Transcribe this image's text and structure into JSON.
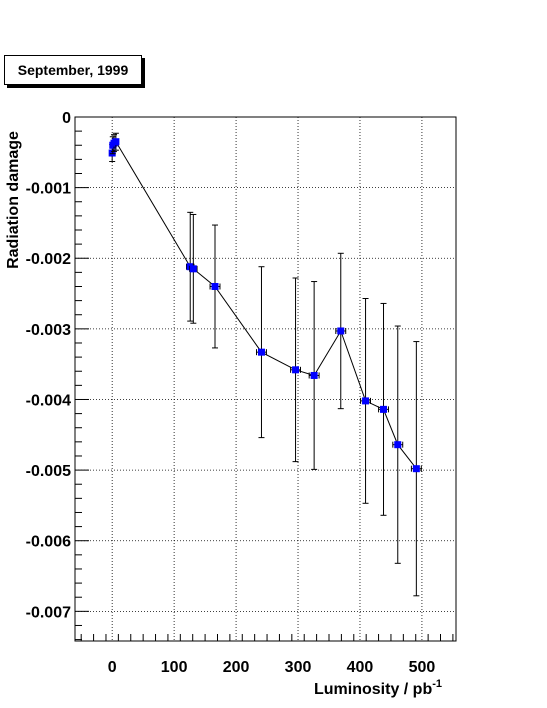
{
  "chart_data": {
    "type": "scatter",
    "title": "September, 1999",
    "xlabel": "Luminosity / pb",
    "xlabel_sup": "-1",
    "ylabel": "Radiation damage",
    "xlim": [
      -60,
      555
    ],
    "ylim": [
      -0.00742,
      0
    ],
    "x_ticks": [
      0,
      100,
      200,
      300,
      400,
      500
    ],
    "x_tick_labels": [
      "0",
      "100",
      "200",
      "300",
      "400",
      "500"
    ],
    "y_ticks": [
      0,
      -0.001,
      -0.002,
      -0.003,
      -0.004,
      -0.005,
      -0.006,
      -0.007
    ],
    "y_tick_labels": [
      "0",
      "-0.001",
      "-0.002",
      "-0.003",
      "-0.004",
      "-0.005",
      "-0.006",
      "-0.007"
    ],
    "grid": true,
    "marker_color": "#0000ff",
    "series": [
      {
        "points": [
          {
            "x": 0,
            "y": -0.00051,
            "xerr": 4,
            "yerr": 0.00012
          },
          {
            "x": 1,
            "y": -0.0004,
            "xerr": 4,
            "yerr": 0.00012
          },
          {
            "x": 3,
            "y": -0.00037,
            "xerr": 4,
            "yerr": 0.00012
          },
          {
            "x": 6,
            "y": -0.00035,
            "xerr": 4,
            "yerr": 0.00012
          },
          {
            "x": 126,
            "y": -0.00212,
            "xerr": 6,
            "yerr": 0.00077
          },
          {
            "x": 131,
            "y": -0.00215,
            "xerr": 6,
            "yerr": 0.00077
          },
          {
            "x": 166,
            "y": -0.0024,
            "xerr": 8,
            "yerr": 0.00087
          },
          {
            "x": 241,
            "y": -0.00333,
            "xerr": 8,
            "yerr": 0.00121
          },
          {
            "x": 296,
            "y": -0.00358,
            "xerr": 8,
            "yerr": 0.0013
          },
          {
            "x": 326,
            "y": -0.00366,
            "xerr": 8,
            "yerr": 0.00133
          },
          {
            "x": 369,
            "y": -0.00303,
            "xerr": 8,
            "yerr": 0.0011
          },
          {
            "x": 409,
            "y": -0.00402,
            "xerr": 8,
            "yerr": 0.00145
          },
          {
            "x": 438,
            "y": -0.00414,
            "xerr": 8,
            "yerr": 0.0015
          },
          {
            "x": 461,
            "y": -0.00464,
            "xerr": 8,
            "yerr": 0.00168
          },
          {
            "x": 491,
            "y": -0.00498,
            "xerr": 8,
            "yerr": 0.0018
          }
        ]
      }
    ]
  }
}
